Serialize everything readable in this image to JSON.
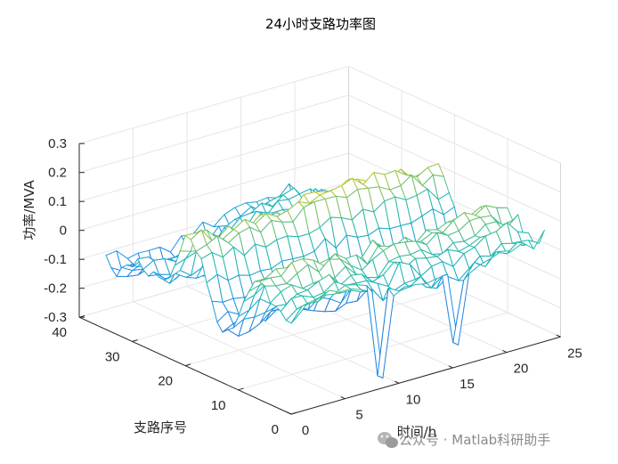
{
  "chart_data": {
    "type": "surface-mesh",
    "title": "24小时支路功率图",
    "xlabel": "时间/h",
    "ylabel": "支路序号",
    "zlabel": "功率/MVA",
    "xlim": [
      0,
      25
    ],
    "ylim": [
      0,
      40
    ],
    "zlim": [
      -0.3,
      0.3
    ],
    "x_ticks": [
      "0",
      "5",
      "10",
      "15",
      "20",
      "25"
    ],
    "y_ticks": [
      "0",
      "10",
      "20",
      "30",
      "40"
    ],
    "z_ticks": [
      "0.3",
      "0.2",
      "0.1",
      "0",
      "-0.1",
      "-0.2",
      "-0.3"
    ],
    "grid": true,
    "colormap": "parula",
    "colors": {
      "low": "#3e26a8",
      "mid": "#1fb9b0",
      "high": "#f9fb0e",
      "axis": "#262626",
      "grid": "#e6e6e6"
    },
    "time_points": 24,
    "branches": 37,
    "notable_minima": [
      {
        "t": 9,
        "branch": 1,
        "value": -0.28
      },
      {
        "t": 16,
        "branch": 1,
        "value": -0.24
      }
    ]
  },
  "watermark": {
    "text": "公众号 · Matlab科研助手",
    "icon": "wechat-icon"
  }
}
